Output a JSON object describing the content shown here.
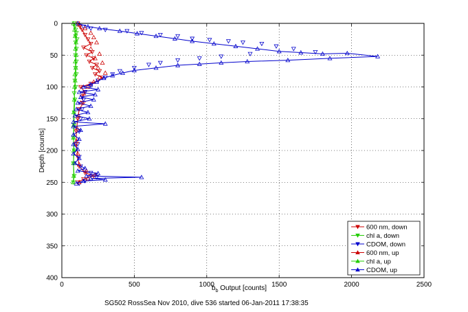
{
  "chart_data": {
    "type": "scatter",
    "xlabel_main": "b",
    "xlabel_sub": "b",
    "xlabel_rest": " Output [counts]",
    "ylabel": "Depth [counts]",
    "caption": "SG502 RossSea Nov 2010, dive 536 started 06-Jan-2011 17:38:35",
    "xlim": [
      0,
      2500
    ],
    "ylim": [
      0,
      400
    ],
    "y_reversed": true,
    "grid": true,
    "legend_position": "bottom-right",
    "xticks": [
      0,
      500,
      1000,
      1500,
      2000,
      2500
    ],
    "yticks": [
      0,
      50,
      100,
      150,
      200,
      250,
      300,
      350,
      400
    ],
    "series": [
      {
        "name": "600 nm, down",
        "color": "#cc0000",
        "marker": "down",
        "connect": true,
        "points": [
          [
            110,
            0
          ],
          [
            125,
            5
          ],
          [
            140,
            10
          ],
          [
            160,
            18
          ],
          [
            180,
            25
          ],
          [
            200,
            32
          ],
          [
            150,
            38
          ],
          [
            210,
            45
          ],
          [
            170,
            50
          ],
          [
            220,
            55
          ],
          [
            190,
            60
          ],
          [
            240,
            65
          ],
          [
            210,
            70
          ],
          [
            260,
            75
          ],
          [
            230,
            80
          ],
          [
            280,
            85
          ],
          [
            250,
            90
          ],
          [
            200,
            95
          ],
          [
            130,
            100
          ],
          [
            160,
            108
          ],
          [
            140,
            115
          ],
          [
            150,
            125
          ],
          [
            120,
            135
          ],
          [
            110,
            150
          ],
          [
            100,
            170
          ],
          [
            100,
            190
          ],
          [
            110,
            210
          ],
          [
            120,
            225
          ],
          [
            160,
            235
          ],
          [
            220,
            240
          ],
          [
            150,
            245
          ],
          [
            110,
            250
          ]
        ]
      },
      {
        "name": "chl a, down",
        "color": "#22cc00",
        "marker": "down",
        "connect": true,
        "points": [
          [
            85,
            0
          ],
          [
            90,
            5
          ],
          [
            95,
            10
          ],
          [
            100,
            15
          ],
          [
            95,
            20
          ],
          [
            105,
            25
          ],
          [
            95,
            30
          ],
          [
            100,
            40
          ],
          [
            95,
            50
          ],
          [
            100,
            60
          ],
          [
            95,
            70
          ],
          [
            100,
            80
          ],
          [
            90,
            90
          ],
          [
            95,
            100
          ],
          [
            85,
            110
          ],
          [
            90,
            120
          ],
          [
            85,
            140
          ],
          [
            85,
            160
          ],
          [
            80,
            180
          ],
          [
            85,
            200
          ],
          [
            80,
            220
          ],
          [
            85,
            240
          ],
          [
            80,
            250
          ]
        ]
      },
      {
        "name": "CDOM, down",
        "color": "#0000cc",
        "marker": "down",
        "connect": false,
        "points": [
          [
            150,
            5
          ],
          [
            200,
            8
          ],
          [
            300,
            10
          ],
          [
            450,
            12
          ],
          [
            550,
            15
          ],
          [
            680,
            18
          ],
          [
            800,
            20
          ],
          [
            900,
            24
          ],
          [
            1020,
            26
          ],
          [
            1150,
            28
          ],
          [
            1250,
            30
          ],
          [
            1380,
            32
          ],
          [
            1480,
            36
          ],
          [
            1600,
            40
          ],
          [
            1750,
            45
          ],
          [
            1300,
            48
          ],
          [
            1100,
            52
          ],
          [
            950,
            55
          ],
          [
            800,
            58
          ],
          [
            680,
            62
          ],
          [
            600,
            65
          ],
          [
            500,
            70
          ],
          [
            400,
            75
          ],
          [
            350,
            80
          ],
          [
            300,
            85
          ],
          [
            250,
            90
          ],
          [
            200,
            98
          ],
          [
            160,
            108
          ],
          [
            150,
            120
          ],
          [
            140,
            135
          ],
          [
            130,
            150
          ],
          [
            120,
            170
          ],
          [
            110,
            190
          ],
          [
            120,
            210
          ],
          [
            130,
            225
          ],
          [
            200,
            235
          ],
          [
            240,
            242
          ],
          [
            160,
            248
          ],
          [
            120,
            252
          ]
        ]
      },
      {
        "name": "600 nm, up",
        "color": "#cc0000",
        "marker": "up",
        "connect": false,
        "points": [
          [
            120,
            2
          ],
          [
            160,
            8
          ],
          [
            200,
            15
          ],
          [
            220,
            22
          ],
          [
            240,
            30
          ],
          [
            200,
            40
          ],
          [
            260,
            48
          ],
          [
            230,
            55
          ],
          [
            280,
            62
          ],
          [
            250,
            70
          ],
          [
            300,
            78
          ],
          [
            260,
            85
          ],
          [
            220,
            92
          ],
          [
            180,
            100
          ],
          [
            150,
            110
          ],
          [
            130,
            125
          ],
          [
            115,
            145
          ],
          [
            105,
            165
          ],
          [
            100,
            185
          ],
          [
            110,
            205
          ],
          [
            120,
            222
          ],
          [
            170,
            232
          ],
          [
            230,
            238
          ],
          [
            180,
            244
          ],
          [
            120,
            250
          ]
        ]
      },
      {
        "name": "chl a, up",
        "color": "#22cc00",
        "marker": "up",
        "connect": true,
        "points": [
          [
            80,
            0
          ],
          [
            88,
            10
          ],
          [
            92,
            20
          ],
          [
            98,
            30
          ],
          [
            94,
            40
          ],
          [
            98,
            50
          ],
          [
            92,
            60
          ],
          [
            96,
            70
          ],
          [
            90,
            80
          ],
          [
            92,
            90
          ],
          [
            88,
            100
          ],
          [
            86,
            120
          ],
          [
            82,
            140
          ],
          [
            82,
            160
          ],
          [
            80,
            180
          ],
          [
            82,
            200
          ],
          [
            80,
            220
          ],
          [
            82,
            240
          ],
          [
            78,
            250
          ]
        ]
      },
      {
        "name": "CDOM, up",
        "color": "#0000cc",
        "marker": "up",
        "connect": true,
        "points": [
          [
            110,
            0
          ],
          [
            180,
            5
          ],
          [
            260,
            8
          ],
          [
            400,
            12
          ],
          [
            520,
            16
          ],
          [
            650,
            20
          ],
          [
            780,
            24
          ],
          [
            900,
            28
          ],
          [
            1050,
            32
          ],
          [
            1200,
            36
          ],
          [
            1350,
            40
          ],
          [
            1500,
            44
          ],
          [
            1650,
            46
          ],
          [
            1800,
            48
          ],
          [
            1970,
            47
          ],
          [
            2180,
            52
          ],
          [
            1850,
            55
          ],
          [
            1560,
            58
          ],
          [
            1280,
            60
          ],
          [
            1100,
            62
          ],
          [
            950,
            64
          ],
          [
            800,
            66
          ],
          [
            650,
            70
          ],
          [
            500,
            74
          ],
          [
            420,
            78
          ],
          [
            350,
            82
          ],
          [
            290,
            86
          ],
          [
            240,
            92
          ],
          [
            200,
            96
          ],
          [
            150,
            100
          ],
          [
            250,
            104
          ],
          [
            120,
            108
          ],
          [
            230,
            112
          ],
          [
            130,
            116
          ],
          [
            220,
            120
          ],
          [
            110,
            125
          ],
          [
            200,
            130
          ],
          [
            100,
            135
          ],
          [
            180,
            140
          ],
          [
            90,
            145
          ],
          [
            190,
            150
          ],
          [
            80,
            155
          ],
          [
            300,
            158
          ],
          [
            80,
            162
          ],
          [
            130,
            168
          ],
          [
            80,
            175
          ],
          [
            120,
            182
          ],
          [
            80,
            190
          ],
          [
            110,
            198
          ],
          [
            80,
            205
          ],
          [
            120,
            212
          ],
          [
            90,
            220
          ],
          [
            160,
            228
          ],
          [
            110,
            232
          ],
          [
            250,
            236
          ],
          [
            170,
            240
          ],
          [
            550,
            242
          ],
          [
            200,
            244
          ],
          [
            300,
            246
          ],
          [
            150,
            248
          ],
          [
            100,
            252
          ]
        ]
      }
    ]
  }
}
